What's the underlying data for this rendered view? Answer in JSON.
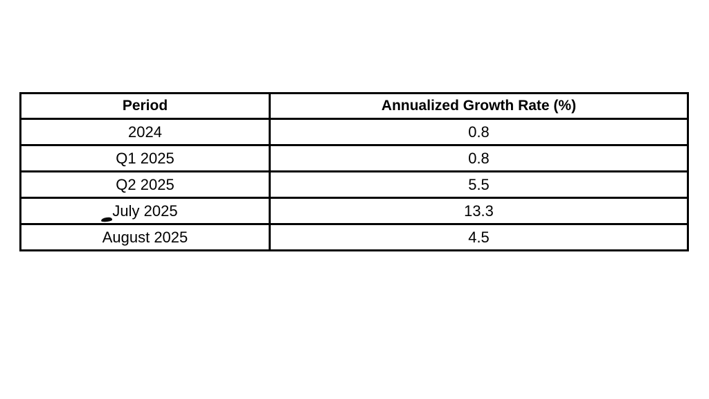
{
  "colors": {
    "background": "#ffffff",
    "border": "#000000",
    "text": "#000000"
  },
  "table": {
    "headers": [
      "Period",
      "Annualized Growth Rate (%)"
    ],
    "rows": [
      [
        "2024",
        "0.8"
      ],
      [
        "Q1 2025",
        "0.8"
      ],
      [
        "Q2 2025",
        "5.5"
      ],
      [
        "July 2025",
        "13.3"
      ],
      [
        "August 2025",
        "4.5"
      ]
    ]
  },
  "chart_data": {
    "type": "table",
    "columns": [
      "Period",
      "Annualized Growth Rate (%)"
    ],
    "categories": [
      "2024",
      "Q1 2025",
      "Q2 2025",
      "July 2025",
      "August 2025"
    ],
    "values": [
      0.8,
      0.8,
      5.5,
      13.3,
      4.5
    ]
  }
}
